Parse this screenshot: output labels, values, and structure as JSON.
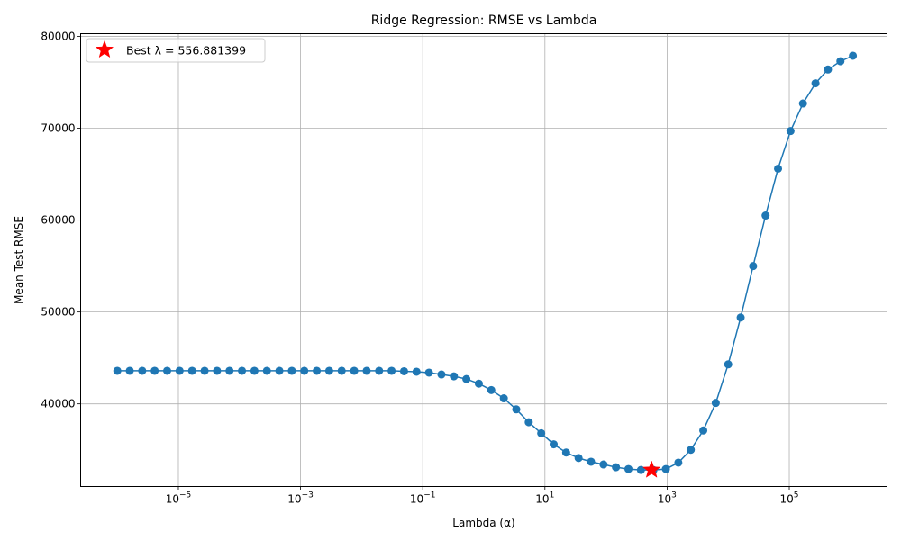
{
  "chart_data": {
    "type": "line",
    "title": "Ridge Regression: RMSE vs Lambda",
    "xlabel": "Lambda (α)",
    "ylabel": "Mean Test RMSE",
    "xscale": "log",
    "xlim_log10": [
      -6.6,
      6.6
    ],
    "ylim": [
      31000,
      80300
    ],
    "grid": true,
    "legend_position": "top-left",
    "colors": {
      "series": "#1f77b4",
      "best": "#ff0000",
      "grid": "#b0b0b0"
    },
    "x_ticks": [
      {
        "base": "10",
        "exp": "−5",
        "log10": -5
      },
      {
        "base": "10",
        "exp": "−3",
        "log10": -3
      },
      {
        "base": "10",
        "exp": "−1",
        "log10": -1
      },
      {
        "base": "10",
        "exp": "1",
        "log10": 1
      },
      {
        "base": "10",
        "exp": "3",
        "log10": 3
      },
      {
        "base": "10",
        "exp": "5",
        "log10": 5
      }
    ],
    "y_ticks": [
      40000,
      50000,
      60000,
      70000,
      80000
    ],
    "y_tick_labels": [
      "40000",
      "50000",
      "60000",
      "70000",
      "80000"
    ],
    "series": [
      {
        "x_log10": [
          -6.0,
          -5.796,
          -5.592,
          -5.388,
          -5.184,
          -4.98,
          -4.776,
          -4.571,
          -4.367,
          -4.163,
          -3.959,
          -3.755,
          -3.551,
          -3.347,
          -3.143,
          -2.939,
          -2.735,
          -2.531,
          -2.327,
          -2.122,
          -1.918,
          -1.714,
          -1.51,
          -1.306,
          -1.102,
          -0.898,
          -0.694,
          -0.49,
          -0.286,
          -0.082,
          0.122,
          0.327,
          0.531,
          0.735,
          0.939,
          1.143,
          1.347,
          1.551,
          1.755,
          1.959,
          2.163,
          2.367,
          2.571,
          2.776,
          2.98,
          3.184,
          3.388,
          3.592,
          3.796,
          4.0,
          4.204,
          4.408,
          4.612,
          4.816,
          5.02,
          5.224,
          5.429,
          5.633,
          5.837,
          6.041
        ],
        "values": [
          43600,
          43600,
          43600,
          43600,
          43600,
          43600,
          43600,
          43600,
          43600,
          43600,
          43600,
          43600,
          43600,
          43600,
          43600,
          43600,
          43600,
          43600,
          43600,
          43600,
          43600,
          43600,
          43600,
          43550,
          43500,
          43400,
          43200,
          43000,
          42700,
          42200,
          41500,
          40600,
          39400,
          38000,
          36800,
          35600,
          34700,
          34100,
          33700,
          33400,
          33100,
          32900,
          32800,
          32800,
          32900,
          33600,
          35000,
          37100,
          40100,
          44300,
          49400,
          55000,
          60500,
          65600,
          69700,
          72700,
          74900,
          76400,
          77300,
          77900
        ]
      }
    ],
    "best": {
      "lambda": 556.881399,
      "rmse": 32800,
      "label": "Best λ = 556.881399"
    }
  }
}
